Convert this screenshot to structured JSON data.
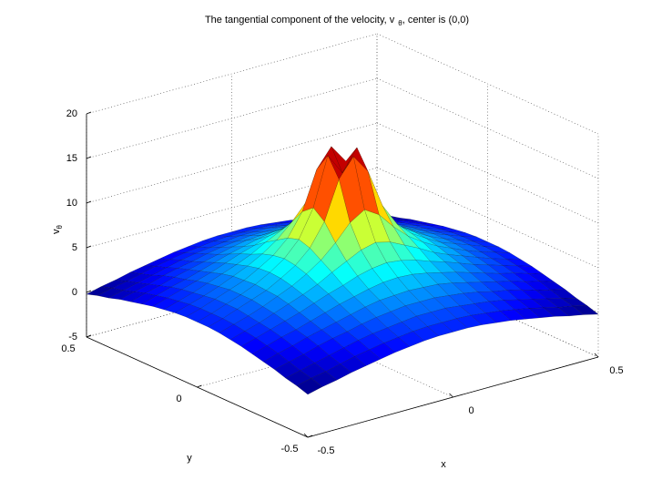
{
  "chart_data": {
    "type": "surface",
    "title": "The tangential component of the velocity, v",
    "title_subscript": "θ",
    "title_suffix": ", center is (0,0)",
    "xlabel": "x",
    "ylabel": "y",
    "zlabel": "v",
    "zlabel_subscript": "θ",
    "colormap": "jet",
    "grid": true,
    "xlim": [
      -0.5,
      0.5
    ],
    "ylim": [
      -0.5,
      0.5
    ],
    "zlim": [
      -5,
      20
    ],
    "xticks": [
      -0.5,
      0,
      0.5
    ],
    "yticks": [
      -0.5,
      0,
      0.5
    ],
    "zticks": [
      -5,
      0,
      5,
      10,
      15,
      20
    ],
    "x": [
      -0.5,
      -0.45,
      -0.4,
      -0.35,
      -0.3,
      -0.25,
      -0.2,
      -0.15,
      -0.1,
      -0.05,
      0,
      0.05,
      0.1,
      0.15,
      0.2,
      0.25,
      0.3,
      0.35,
      0.4,
      0.45,
      0.5
    ],
    "y": [
      -0.5,
      -0.45,
      -0.4,
      -0.35,
      -0.3,
      -0.25,
      -0.2,
      -0.15,
      -0.1,
      -0.05,
      0,
      0.05,
      0.1,
      0.15,
      0.2,
      0.25,
      0.3,
      0.35,
      0.4,
      0.45,
      0.5
    ],
    "z": [
      [
        -0.2,
        0.2,
        0.5,
        0.9,
        1.2,
        1.5,
        1.8,
        2.0,
        2.2,
        2.3,
        2.3,
        2.3,
        2.2,
        2.0,
        1.8,
        1.5,
        1.2,
        0.9,
        0.5,
        0.2,
        -0.2
      ],
      [
        0.2,
        0.6,
        0.9,
        1.3,
        1.7,
        2.0,
        2.3,
        2.5,
        2.7,
        2.8,
        2.8,
        2.8,
        2.7,
        2.5,
        2.3,
        2.0,
        1.7,
        1.3,
        0.9,
        0.6,
        0.2
      ],
      [
        0.5,
        0.9,
        1.3,
        1.7,
        2.1,
        2.5,
        2.8,
        3.0,
        3.2,
        3.4,
        3.4,
        3.4,
        3.2,
        3.0,
        2.8,
        2.5,
        2.1,
        1.7,
        1.3,
        0.9,
        0.5
      ],
      [
        0.9,
        1.3,
        1.7,
        2.2,
        2.6,
        2.9,
        3.3,
        3.6,
        3.8,
        4.0,
        4.0,
        4.0,
        3.8,
        3.6,
        3.3,
        2.9,
        2.6,
        2.2,
        1.7,
        1.3,
        0.9
      ],
      [
        1.2,
        1.7,
        2.1,
        2.6,
        3.0,
        3.4,
        3.8,
        4.2,
        4.5,
        4.6,
        4.7,
        4.6,
        4.5,
        4.2,
        3.8,
        3.4,
        3.0,
        2.6,
        2.1,
        1.7,
        1.2
      ],
      [
        1.5,
        2.0,
        2.5,
        2.9,
        3.4,
        3.9,
        4.4,
        4.8,
        5.2,
        5.5,
        5.6,
        5.5,
        5.2,
        4.8,
        4.4,
        3.9,
        3.4,
        2.9,
        2.5,
        2.0,
        1.5
      ],
      [
        1.8,
        2.3,
        2.8,
        3.3,
        3.8,
        4.4,
        5.0,
        5.5,
        6.1,
        6.5,
        6.7,
        6.5,
        6.1,
        5.5,
        5.0,
        4.4,
        3.8,
        3.3,
        2.8,
        2.3,
        1.8
      ],
      [
        2.0,
        2.5,
        3.0,
        3.6,
        4.2,
        4.8,
        5.5,
        6.4,
        7.2,
        8.0,
        8.4,
        8.0,
        7.2,
        6.4,
        5.5,
        4.8,
        4.2,
        3.6,
        3.0,
        2.5,
        2.0
      ],
      [
        2.2,
        2.7,
        3.2,
        3.8,
        4.5,
        5.2,
        6.1,
        7.2,
        8.7,
        10.5,
        11.5,
        10.5,
        8.7,
        7.2,
        6.1,
        5.2,
        4.5,
        3.8,
        3.2,
        2.7,
        2.2
      ],
      [
        2.3,
        2.8,
        3.4,
        4.0,
        4.6,
        5.5,
        6.5,
        8.0,
        10.5,
        14.8,
        16.9,
        14.8,
        10.5,
        8.0,
        6.5,
        5.5,
        4.6,
        4.0,
        3.4,
        2.8,
        2.3
      ],
      [
        2.3,
        2.8,
        3.4,
        4.0,
        4.7,
        5.6,
        6.7,
        8.4,
        11.5,
        16.9,
        14.5,
        16.9,
        11.5,
        8.4,
        6.7,
        5.6,
        4.7,
        4.0,
        3.4,
        2.8,
        2.3
      ],
      [
        2.3,
        2.8,
        3.4,
        4.0,
        4.6,
        5.5,
        6.5,
        8.0,
        10.5,
        14.8,
        16.9,
        14.8,
        10.5,
        8.0,
        6.5,
        5.5,
        4.6,
        4.0,
        3.4,
        2.8,
        2.3
      ],
      [
        2.2,
        2.7,
        3.2,
        3.8,
        4.5,
        5.2,
        6.1,
        7.2,
        8.7,
        10.5,
        11.5,
        10.5,
        8.7,
        7.2,
        6.1,
        5.2,
        4.5,
        3.8,
        3.2,
        2.7,
        2.2
      ],
      [
        2.0,
        2.5,
        3.0,
        3.6,
        4.2,
        4.8,
        5.5,
        6.4,
        7.2,
        8.0,
        8.4,
        8.0,
        7.2,
        6.4,
        5.5,
        4.8,
        4.2,
        3.6,
        3.0,
        2.5,
        2.0
      ],
      [
        1.8,
        2.3,
        2.8,
        3.3,
        3.8,
        4.4,
        5.0,
        5.5,
        6.1,
        6.5,
        6.7,
        6.5,
        6.1,
        5.5,
        5.0,
        4.4,
        3.8,
        3.3,
        2.8,
        2.3,
        1.8
      ],
      [
        1.5,
        2.0,
        2.5,
        2.9,
        3.4,
        3.9,
        4.4,
        4.8,
        5.2,
        5.5,
        5.6,
        5.5,
        5.2,
        4.8,
        4.4,
        3.9,
        3.4,
        2.9,
        2.5,
        2.0,
        1.5
      ],
      [
        1.2,
        1.7,
        2.1,
        2.6,
        3.0,
        3.4,
        3.8,
        4.2,
        4.5,
        4.6,
        4.7,
        4.6,
        4.5,
        4.2,
        3.8,
        3.4,
        3.0,
        2.6,
        2.1,
        1.7,
        1.2
      ],
      [
        0.9,
        1.3,
        1.7,
        2.2,
        2.6,
        2.9,
        3.3,
        3.6,
        3.8,
        4.0,
        4.0,
        4.0,
        3.8,
        3.6,
        3.3,
        2.9,
        2.6,
        2.2,
        1.7,
        1.3,
        0.9
      ],
      [
        0.5,
        0.9,
        1.3,
        1.7,
        2.1,
        2.5,
        2.8,
        3.0,
        3.2,
        3.4,
        3.4,
        3.4,
        3.2,
        3.0,
        2.8,
        2.5,
        2.1,
        1.7,
        1.3,
        0.9,
        0.5
      ],
      [
        0.2,
        0.6,
        0.9,
        1.3,
        1.7,
        2.0,
        2.3,
        2.5,
        2.7,
        2.8,
        2.8,
        2.8,
        2.7,
        2.5,
        2.3,
        2.0,
        1.7,
        1.3,
        0.9,
        0.6,
        0.2
      ],
      [
        -0.2,
        0.2,
        0.5,
        0.9,
        1.2,
        1.5,
        1.8,
        2.0,
        2.2,
        2.3,
        2.3,
        2.3,
        2.2,
        2.0,
        1.8,
        1.5,
        1.2,
        0.9,
        0.5,
        0.2,
        -0.2
      ]
    ]
  }
}
